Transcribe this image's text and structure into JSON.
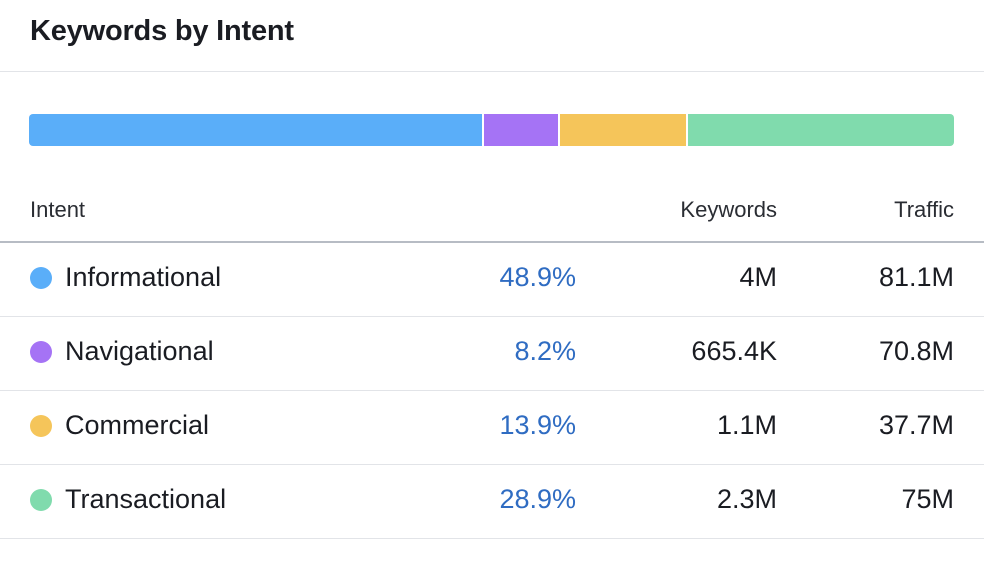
{
  "widget": {
    "title": "Keywords by Intent"
  },
  "table": {
    "headers": {
      "intent": "Intent",
      "keywords": "Keywords",
      "traffic": "Traffic"
    },
    "rows": [
      {
        "intent": "Informational",
        "percent": "48.9%",
        "share": 48.9,
        "keywords": "4M",
        "traffic": "81.1M",
        "color": "#5aaef9"
      },
      {
        "intent": "Navigational",
        "percent": "8.2%",
        "share": 8.2,
        "keywords": "665.4K",
        "traffic": "70.8M",
        "color": "#a573f5"
      },
      {
        "intent": "Commercial",
        "percent": "13.9%",
        "share": 13.9,
        "keywords": "1.1M",
        "traffic": "37.7M",
        "color": "#f5c55a"
      },
      {
        "intent": "Transactional",
        "percent": "28.9%",
        "share": 28.9,
        "keywords": "2.3M",
        "traffic": "75M",
        "color": "#80dbad"
      }
    ]
  },
  "colors": {
    "percent_link": "#2f6cc2"
  }
}
